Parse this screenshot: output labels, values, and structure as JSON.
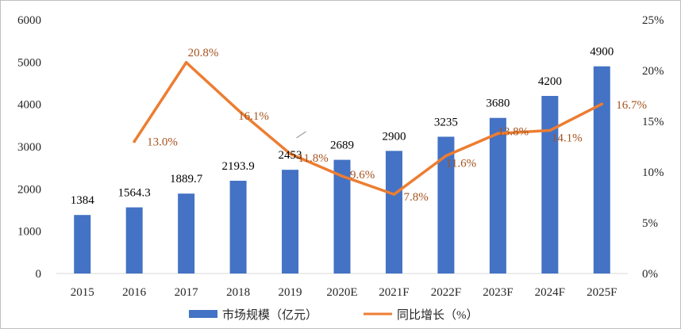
{
  "chart_data": {
    "type": "bar",
    "categories": [
      "2015",
      "2016",
      "2017",
      "2018",
      "2019",
      "2020E",
      "2021F",
      "2022F",
      "2023F",
      "2024F",
      "2025F"
    ],
    "series": [
      {
        "name": "市场规模（亿元）",
        "kind": "bar",
        "axis": "left",
        "color": "#4472c4",
        "values": [
          1384,
          1564.3,
          1889.7,
          2193.9,
          2453,
          2689,
          2900,
          3235,
          3680,
          4200,
          4900
        ],
        "labels": [
          "1384",
          "1564.3",
          "1889.7",
          "2193.9",
          "2453",
          "2689",
          "2900",
          "3235",
          "3680",
          "4200",
          "4900"
        ]
      },
      {
        "name": "同比增长（%）",
        "kind": "line",
        "axis": "right",
        "color": "#ed7d31",
        "label_color": "#a5531e",
        "values": [
          null,
          13.0,
          20.8,
          16.1,
          11.8,
          9.6,
          7.8,
          11.6,
          13.8,
          14.1,
          16.7
        ],
        "labels": [
          null,
          "13.0%",
          "20.8%",
          "16.1%",
          "11.8%",
          "9.6%",
          "7.8%",
          "11.6%",
          "13.8%",
          "14.1%",
          "16.7%"
        ]
      }
    ],
    "y_left": {
      "min": 0,
      "max": 6000,
      "ticks": [
        "0",
        "1000",
        "2000",
        "3000",
        "4000",
        "5000",
        "6000"
      ]
    },
    "y_right": {
      "min": 0,
      "max": 25,
      "ticks": [
        "0%",
        "5%",
        "10%",
        "15%",
        "20%",
        "25%"
      ]
    },
    "grid": false,
    "legend_position": "bottom"
  }
}
